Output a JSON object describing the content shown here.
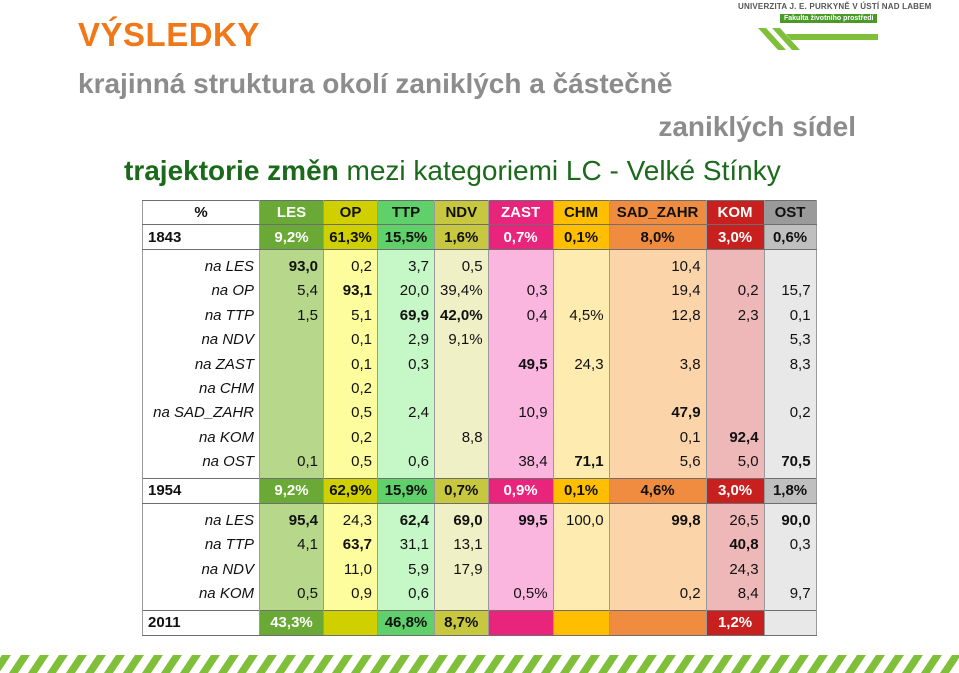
{
  "heading": "VÝSLEDKY",
  "subtitle_line1": "krajinná struktura okolí zaniklých a částečně",
  "subtitle_line2": "zaniklých sídel",
  "trajectory_bold": "trajektorie změn",
  "trajectory_rest": " mezi kategoriemi LC - Velké Stínky",
  "logo": {
    "university": "UNIVERZITA J. E. PURKYNĚ V ÚSTÍ NAD LABEM",
    "faculty": "Fakulta životního prostředí"
  },
  "colors": {
    "heading": "#f07818",
    "subtitle": "#8c8c8c",
    "trajectory": "#1b6a1b",
    "brand_green": "#7fbf3a"
  },
  "table": {
    "header": [
      "%",
      "LES",
      "OP",
      "TTP",
      "NDV",
      "ZAST",
      "CHM",
      "SAD_ZAHR",
      "KOM",
      "OST"
    ],
    "row_1843": [
      "1843",
      "9,2%",
      "61,3%",
      "15,5%",
      "1,6%",
      "0,7%",
      "0,1%",
      "8,0%",
      "3,0%",
      "0,6%"
    ],
    "block_1843": [
      [
        "na LES",
        "93,0",
        "0,2",
        "3,7",
        "0,5",
        "",
        "",
        "10,4",
        "",
        ""
      ],
      [
        "na OP",
        "5,4",
        "93,1",
        "20,0",
        "39,4%",
        "0,3",
        "",
        "19,4",
        "0,2",
        "15,7"
      ],
      [
        "na TTP",
        "1,5",
        "5,1",
        "69,9",
        "42,0%",
        "0,4",
        "4,5%",
        "12,8",
        "2,3",
        "0,1"
      ],
      [
        "na NDV",
        "",
        "0,1",
        "2,9",
        "9,1%",
        "",
        "",
        "",
        "",
        "5,3"
      ],
      [
        "na ZAST",
        "",
        "0,1",
        "0,3",
        "",
        "49,5",
        "24,3",
        "3,8",
        "",
        "8,3"
      ],
      [
        "na CHM",
        "",
        "0,2",
        "",
        "",
        "",
        "",
        "",
        "",
        ""
      ],
      [
        "na SAD_ZAHR",
        "",
        "0,5",
        "2,4",
        "",
        "10,9",
        "",
        "47,9",
        "",
        "0,2"
      ],
      [
        "na KOM",
        "",
        "0,2",
        "",
        "8,8",
        "",
        "",
        "0,1",
        "92,4",
        ""
      ],
      [
        "na OST",
        "0,1",
        "0,5",
        "0,6",
        "",
        "38,4",
        "71,1",
        "5,6",
        "5,0",
        "70,5"
      ]
    ],
    "row_1954": [
      "1954",
      "9,2%",
      "62,9%",
      "15,9%",
      "0,7%",
      "0,9%",
      "0,1%",
      "4,6%",
      "3,0%",
      "1,8%"
    ],
    "block_1954": [
      [
        "na LES",
        "95,4",
        "24,3",
        "62,4",
        "69,0",
        "99,5",
        "100,0",
        "99,8",
        "26,5",
        "90,0"
      ],
      [
        "na TTP",
        "4,1",
        "63,7",
        "31,1",
        "13,1",
        "",
        "",
        "",
        "40,8",
        "0,3"
      ],
      [
        "na NDV",
        "",
        "11,0",
        "5,9",
        "17,9",
        "",
        "",
        "",
        "24,3",
        ""
      ],
      [
        "na KOM",
        "0,5",
        "0,9",
        "0,6",
        "",
        "0,5%",
        "",
        "0,2",
        "8,4",
        "9,7"
      ]
    ],
    "row_2011": [
      "2011",
      "43,3%",
      "",
      "46,8%",
      "8,7%",
      "",
      "",
      "",
      "1,2%",
      ""
    ]
  }
}
